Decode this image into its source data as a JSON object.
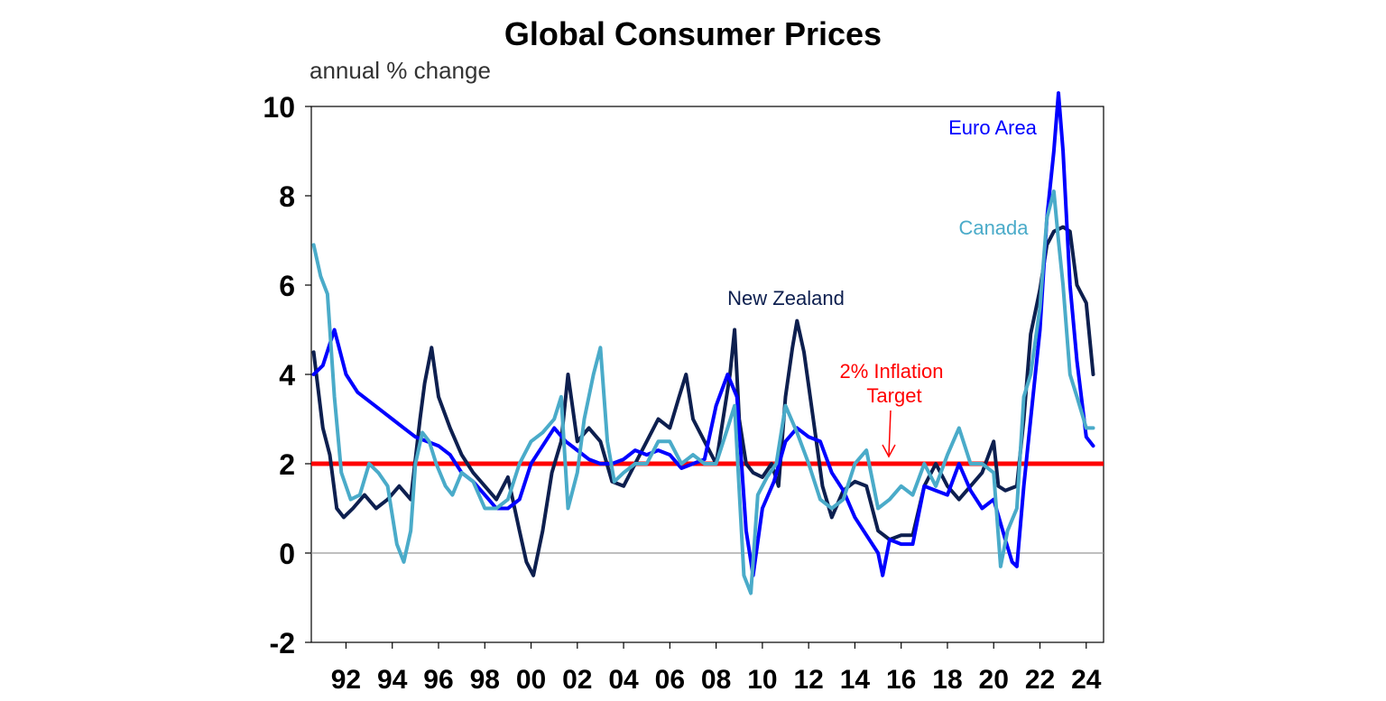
{
  "chart_data": {
    "type": "line",
    "title": "Global Consumer Prices",
    "subtitle": "annual % change",
    "xlabel": "",
    "ylabel": "annual % change",
    "xlim": [
      1990.5,
      2024.75
    ],
    "ylim": [
      -2,
      10
    ],
    "yticks": [
      -2,
      0,
      2,
      4,
      6,
      8,
      10
    ],
    "ytick_labels": [
      "-2",
      "0",
      "2",
      "4",
      "6",
      "8",
      "10"
    ],
    "xticks": [
      1992,
      1994,
      1996,
      1998,
      2000,
      2002,
      2004,
      2006,
      2008,
      2010,
      2012,
      2014,
      2016,
      2018,
      2020,
      2022,
      2024
    ],
    "xtick_labels": [
      "92",
      "94",
      "96",
      "98",
      "00",
      "02",
      "04",
      "06",
      "08",
      "10",
      "12",
      "14",
      "16",
      "18",
      "20",
      "22",
      "24"
    ],
    "reference_lines": [
      {
        "name": "2% Inflation Target",
        "y": 2,
        "color": "#ff0000"
      },
      {
        "name": "zero",
        "y": 0,
        "color": "#999999"
      }
    ],
    "annotations": [
      {
        "text": "Euro Area",
        "color": "#0000ff"
      },
      {
        "text": "Canada",
        "color": "#4aabc9"
      },
      {
        "text": "New Zealand",
        "color": "#0d1f4f"
      },
      {
        "text_lines": [
          "2% Inflation",
          "Target"
        ],
        "color": "#ff0000"
      }
    ],
    "series": [
      {
        "name": "New Zealand",
        "color": "#0d1f4f",
        "x": [
          1990.6,
          1991.0,
          1991.3,
          1991.6,
          1991.9,
          1992.3,
          1992.8,
          1993.3,
          1993.8,
          1994.3,
          1994.8,
          1995.2,
          1995.4,
          1995.7,
          1996.0,
          1996.5,
          1997.0,
          1997.5,
          1998.0,
          1998.5,
          1999.0,
          1999.5,
          1999.8,
          2000.1,
          2000.5,
          2000.9,
          2001.3,
          2001.6,
          2002.0,
          2002.5,
          2003.0,
          2003.5,
          2004.0,
          2004.5,
          2005.0,
          2005.5,
          2006.0,
          2006.4,
          2006.7,
          2007.0,
          2007.5,
          2008.0,
          2008.3,
          2008.6,
          2008.8,
          2009.0,
          2009.3,
          2009.6,
          2010.0,
          2010.4,
          2010.7,
          2011.0,
          2011.3,
          2011.5,
          2011.8,
          2012.2,
          2012.6,
          2013.0,
          2013.5,
          2014.0,
          2014.5,
          2015.0,
          2015.5,
          2016.0,
          2016.5,
          2017.0,
          2017.5,
          2018.0,
          2018.5,
          2019.0,
          2019.5,
          2020.0,
          2020.2,
          2020.5,
          2021.0,
          2021.3,
          2021.6,
          2022.0,
          2022.3,
          2022.6,
          2023.0,
          2023.3,
          2023.6,
          2024.0,
          2024.3
        ],
        "y": [
          4.5,
          2.8,
          2.2,
          1.0,
          0.8,
          1.0,
          1.3,
          1.0,
          1.2,
          1.5,
          1.2,
          3.0,
          3.8,
          4.6,
          3.5,
          2.8,
          2.2,
          1.8,
          1.5,
          1.2,
          1.7,
          0.5,
          -0.2,
          -0.5,
          0.5,
          1.8,
          2.5,
          4.0,
          2.5,
          2.8,
          2.5,
          1.6,
          1.5,
          2.0,
          2.5,
          3.0,
          2.8,
          3.5,
          4.0,
          3.0,
          2.5,
          2.0,
          3.0,
          4.0,
          5.0,
          3.0,
          2.0,
          1.8,
          1.7,
          2.0,
          1.5,
          3.5,
          4.6,
          5.2,
          4.5,
          3.0,
          1.5,
          0.8,
          1.4,
          1.6,
          1.5,
          0.5,
          0.3,
          0.4,
          0.4,
          1.5,
          2.0,
          1.5,
          1.2,
          1.5,
          1.8,
          2.5,
          1.5,
          1.4,
          1.5,
          3.0,
          4.9,
          5.9,
          6.9,
          7.2,
          7.3,
          7.2,
          6.0,
          5.6,
          4.0
        ]
      },
      {
        "name": "Euro Area",
        "color": "#0000ff",
        "x": [
          1990.6,
          1991.0,
          1991.5,
          1992.0,
          1992.5,
          1993.0,
          1993.5,
          1994.0,
          1994.5,
          1995.0,
          1995.5,
          1996.0,
          1996.5,
          1997.0,
          1997.5,
          1998.0,
          1998.5,
          1999.0,
          1999.5,
          2000.0,
          2000.5,
          2001.0,
          2001.5,
          2002.0,
          2002.5,
          2003.0,
          2003.5,
          2004.0,
          2004.5,
          2005.0,
          2005.5,
          2006.0,
          2006.5,
          2007.0,
          2007.5,
          2008.0,
          2008.5,
          2008.9,
          2009.3,
          2009.6,
          2010.0,
          2010.5,
          2011.0,
          2011.5,
          2012.0,
          2012.5,
          2013.0,
          2013.5,
          2014.0,
          2014.5,
          2015.0,
          2015.2,
          2015.5,
          2016.0,
          2016.5,
          2017.0,
          2017.5,
          2018.0,
          2018.5,
          2019.0,
          2019.5,
          2020.0,
          2020.5,
          2020.8,
          2021.0,
          2021.3,
          2021.6,
          2022.0,
          2022.3,
          2022.6,
          2022.8,
          2023.0,
          2023.3,
          2023.6,
          2024.0,
          2024.3
        ],
        "y": [
          4.0,
          4.2,
          5.0,
          4.0,
          3.6,
          3.4,
          3.2,
          3.0,
          2.8,
          2.6,
          2.5,
          2.4,
          2.2,
          1.8,
          1.6,
          1.3,
          1.0,
          1.0,
          1.2,
          2.0,
          2.4,
          2.8,
          2.5,
          2.3,
          2.1,
          2.0,
          2.0,
          2.1,
          2.3,
          2.2,
          2.3,
          2.2,
          1.9,
          2.0,
          2.1,
          3.3,
          4.0,
          3.5,
          0.5,
          -0.5,
          1.0,
          1.6,
          2.5,
          2.8,
          2.6,
          2.5,
          1.8,
          1.4,
          0.8,
          0.4,
          0.0,
          -0.5,
          0.3,
          0.2,
          0.2,
          1.5,
          1.4,
          1.3,
          2.0,
          1.4,
          1.0,
          1.2,
          0.3,
          -0.2,
          -0.3,
          1.5,
          3.0,
          5.0,
          7.5,
          9.0,
          10.3,
          9.0,
          6.0,
          4.3,
          2.6,
          2.4
        ]
      },
      {
        "name": "Canada",
        "color": "#4aabc9",
        "x": [
          1990.6,
          1990.9,
          1991.2,
          1991.5,
          1991.8,
          1992.2,
          1992.6,
          1993.0,
          1993.4,
          1993.8,
          1994.2,
          1994.5,
          1994.8,
          1995.0,
          1995.3,
          1995.6,
          1995.9,
          1996.3,
          1996.6,
          1997.0,
          1997.5,
          1998.0,
          1998.5,
          1999.0,
          1999.5,
          2000.0,
          2000.5,
          2001.0,
          2001.3,
          2001.6,
          2002.0,
          2002.3,
          2002.7,
          2003.0,
          2003.3,
          2003.6,
          2004.0,
          2004.5,
          2005.0,
          2005.5,
          2006.0,
          2006.5,
          2007.0,
          2007.5,
          2008.0,
          2008.5,
          2008.8,
          2009.2,
          2009.5,
          2009.8,
          2010.2,
          2010.6,
          2011.0,
          2011.5,
          2012.0,
          2012.5,
          2013.0,
          2013.5,
          2014.0,
          2014.5,
          2015.0,
          2015.5,
          2016.0,
          2016.5,
          2017.0,
          2017.5,
          2018.0,
          2018.5,
          2019.0,
          2019.5,
          2020.0,
          2020.3,
          2020.6,
          2021.0,
          2021.3,
          2021.6,
          2022.0,
          2022.3,
          2022.6,
          2022.8,
          2023.0,
          2023.3,
          2023.6,
          2024.0,
          2024.3
        ],
        "y": [
          6.9,
          6.2,
          5.8,
          3.5,
          1.8,
          1.2,
          1.3,
          2.0,
          1.8,
          1.5,
          0.2,
          -0.2,
          0.5,
          2.0,
          2.7,
          2.5,
          2.0,
          1.5,
          1.3,
          1.8,
          1.6,
          1.0,
          1.0,
          1.2,
          2.0,
          2.5,
          2.7,
          3.0,
          3.5,
          1.0,
          1.8,
          3.0,
          4.0,
          4.6,
          2.5,
          1.6,
          1.8,
          2.0,
          2.0,
          2.5,
          2.5,
          2.0,
          2.2,
          2.0,
          2.0,
          2.8,
          3.3,
          -0.5,
          -0.9,
          1.3,
          1.7,
          2.0,
          3.3,
          2.7,
          2.0,
          1.2,
          1.0,
          1.2,
          2.0,
          2.3,
          1.0,
          1.2,
          1.5,
          1.3,
          2.0,
          1.5,
          2.2,
          2.8,
          2.0,
          2.0,
          1.8,
          -0.3,
          0.5,
          1.0,
          3.5,
          4.0,
          5.5,
          7.5,
          8.1,
          7.0,
          6.0,
          4.0,
          3.5,
          2.8,
          2.8
        ]
      }
    ]
  }
}
